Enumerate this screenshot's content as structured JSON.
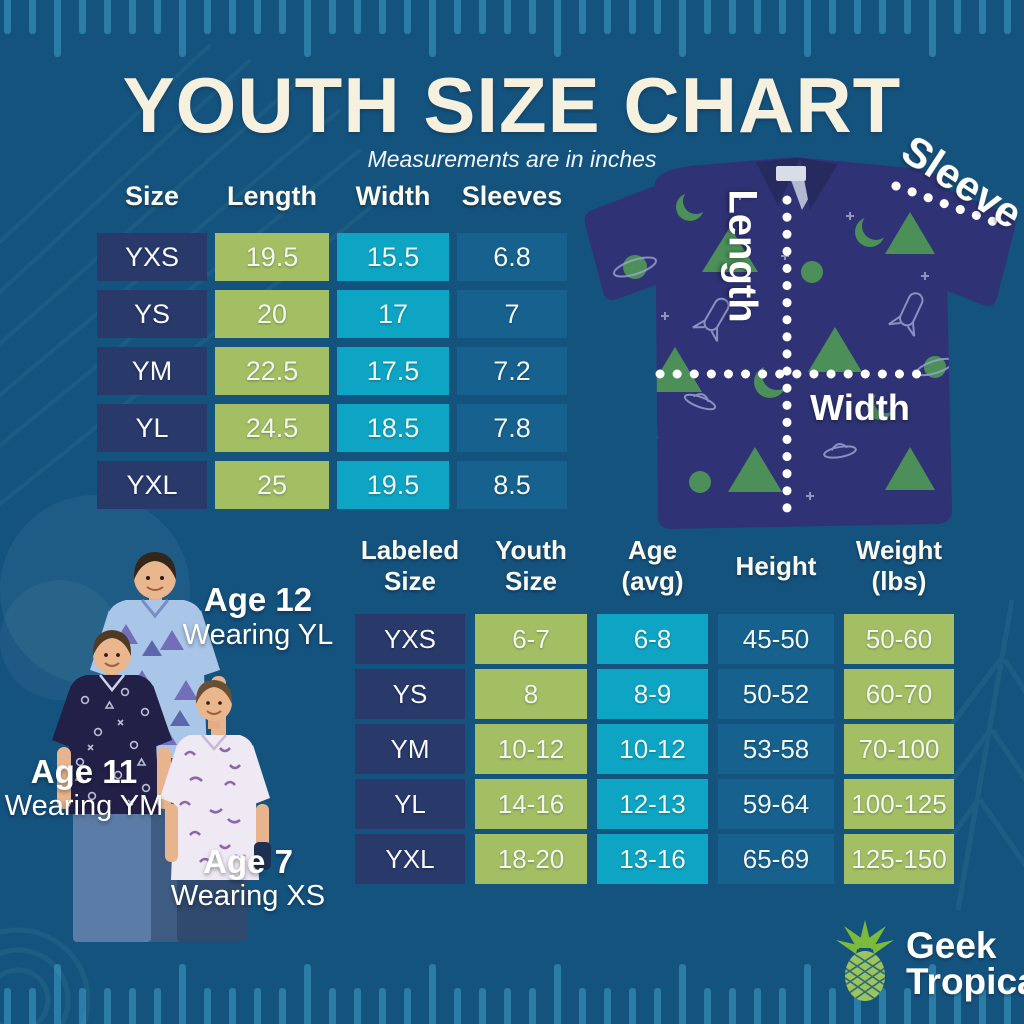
{
  "title": "YOUTH SIZE CHART",
  "subtitle": "Measurements are in inches",
  "colors": {
    "background": "#15537F",
    "ruler_tick": "#2B7DA6",
    "cell_navy": "#28396A",
    "cell_green": "#A3BE63",
    "cell_cyan": "#0EA5C4",
    "cell_blue": "#16618E",
    "title_cream": "#F6F0DF",
    "text_white": "#FFFFFF",
    "shirt_navy": "#2F3375",
    "shirt_motif_green": "#4C8F58",
    "logo_green": "#8FC350"
  },
  "size_table": {
    "headers": [
      "Size",
      "Length",
      "Width",
      "Sleeves"
    ],
    "rows": [
      {
        "size": "YXS",
        "length": "19.5",
        "width": "15.5",
        "sleeves": "6.8"
      },
      {
        "size": "YS",
        "length": "20",
        "width": "17",
        "sleeves": "7"
      },
      {
        "size": "YM",
        "length": "22.5",
        "width": "17.5",
        "sleeves": "7.2"
      },
      {
        "size": "YL",
        "length": "24.5",
        "width": "18.5",
        "sleeves": "7.8"
      },
      {
        "size": "YXL",
        "length": "25",
        "width": "19.5",
        "sleeves": "8.5"
      }
    ]
  },
  "fit_table": {
    "headers": [
      {
        "line1": "Labeled",
        "line2": "Size"
      },
      {
        "line1": "Youth",
        "line2": "Size"
      },
      {
        "line1": "Age",
        "line2": "(avg)"
      },
      {
        "line1": "Height",
        "line2": ""
      },
      {
        "line1": "Weight",
        "line2": "(lbs)"
      }
    ],
    "rows": [
      {
        "labeled_size": "YXS",
        "youth_size": "6-7",
        "age": "6-8",
        "height": "45-50",
        "weight": "50-60"
      },
      {
        "labeled_size": "YS",
        "youth_size": "8",
        "age": "8-9",
        "height": "50-52",
        "weight": "60-70"
      },
      {
        "labeled_size": "YM",
        "youth_size": "10-12",
        "age": "10-12",
        "height": "53-58",
        "weight": "70-100"
      },
      {
        "labeled_size": "YL",
        "youth_size": "14-16",
        "age": "12-13",
        "height": "59-64",
        "weight": "100-125"
      },
      {
        "labeled_size": "YXL",
        "youth_size": "18-20",
        "age": "13-16",
        "height": "65-69",
        "weight": "125-150"
      }
    ]
  },
  "shirt": {
    "length_label": "Length",
    "width_label": "Width",
    "sleeve_label": "Sleeve"
  },
  "models": [
    {
      "age": "Age 12",
      "wearing": "Wearing YL"
    },
    {
      "age": "Age 11",
      "wearing": "Wearing YM"
    },
    {
      "age": "Age 7",
      "wearing": "Wearing XS"
    }
  ],
  "logo": {
    "line1": "Geek",
    "line2": "Tropical"
  }
}
